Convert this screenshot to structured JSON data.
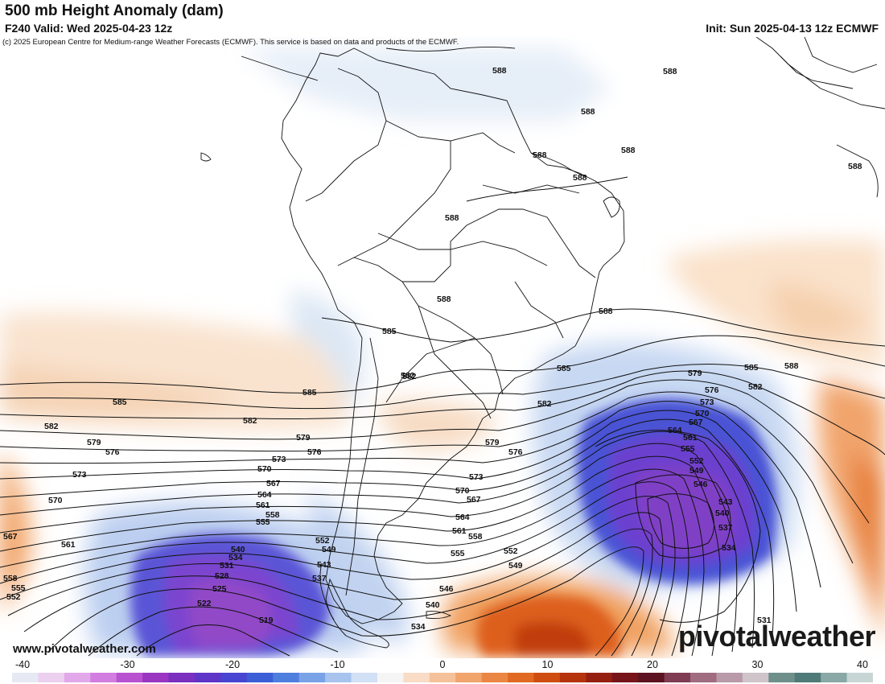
{
  "header": {
    "title": "500 mb Height Anomaly (dam)",
    "valid": "F240 Valid: Wed 2025-04-23 12z",
    "init": "Init: Sun 2025-04-13 12z ECMWF",
    "copyright": "(c) 2025 European Centre for Medium-range Weather Forecasts (ECMWF). This service is based on data and products of the ECMWF."
  },
  "footer": {
    "website": "www.pivotalweather.com",
    "brand": "pivotalweather"
  },
  "colorbar": {
    "ticks": [
      "-40",
      "-30",
      "-20",
      "-10",
      "0",
      "10",
      "20",
      "30",
      "40"
    ],
    "colors": [
      "#e6e9f4",
      "#ecd0ef",
      "#e2a9ea",
      "#d27de0",
      "#b952d0",
      "#9a36c2",
      "#7a2fbf",
      "#5f35c8",
      "#4845d2",
      "#3c5ed6",
      "#4f7fde",
      "#7aa2e6",
      "#a7c3ee",
      "#d2e0f5",
      "#f5f5f5",
      "#f8dcc6",
      "#f5c19a",
      "#f1a46c",
      "#eb8744",
      "#e16a22",
      "#cf4d10",
      "#b5330d",
      "#952012",
      "#76141a",
      "#5c1220",
      "#7f3c52",
      "#9f6c80",
      "#b89aa8",
      "#cfc4ca",
      "#6f8f8a",
      "#4f7a78",
      "#8aa8a5",
      "#c7d6d4"
    ]
  },
  "contour_labels": [
    "588",
    "585",
    "582",
    "579",
    "576",
    "573",
    "570",
    "567",
    "564",
    "561",
    "558",
    "555",
    "552",
    "549",
    "546",
    "543",
    "540",
    "537",
    "534",
    "531",
    "528",
    "525",
    "522",
    "519"
  ]
}
